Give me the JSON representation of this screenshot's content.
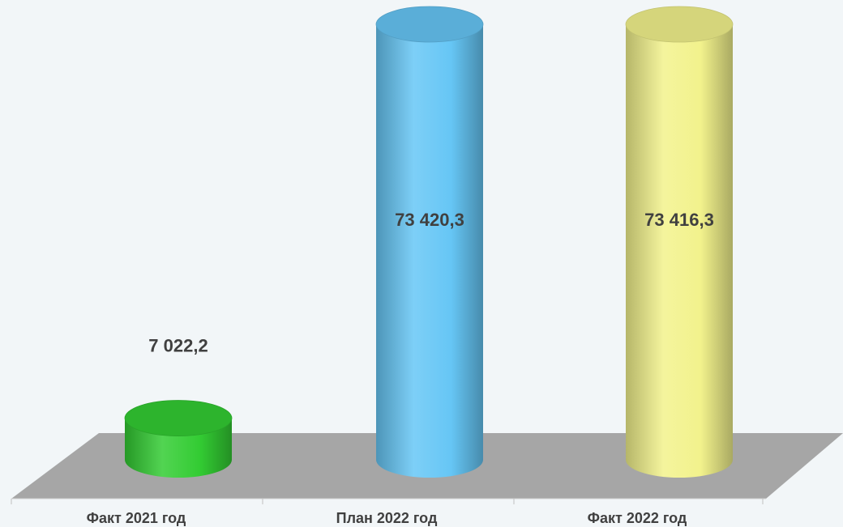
{
  "chart_data": {
    "type": "bar",
    "style": "3d-cylinder",
    "categories": [
      "Факт 2021 год",
      "План 2022 год",
      "Факт 2022 год"
    ],
    "values": [
      7022.2,
      73420.3,
      73416.3
    ],
    "data_labels": [
      "7 022,2",
      "73 420,3",
      "73 416,3"
    ],
    "colors": [
      "#33cc33",
      "#66c6f5",
      "#f2f28c"
    ],
    "floor_color": "#a6a6a6",
    "ylim": [
      0,
      73420.3
    ],
    "grid": false,
    "legend": "none",
    "title": "",
    "xlabel": "",
    "ylabel": ""
  }
}
